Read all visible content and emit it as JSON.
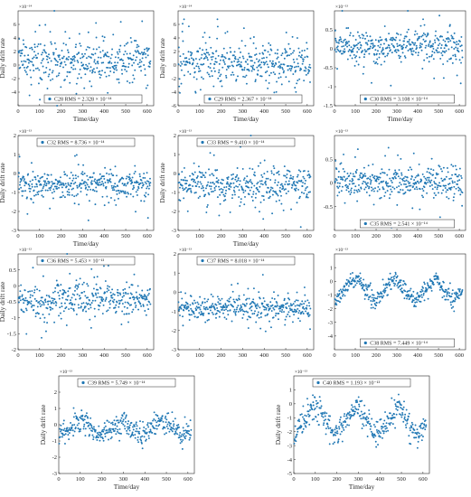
{
  "figure": {
    "marker_color": "#1f77b4",
    "background": "#ffffff",
    "axis_color": "#262626"
  },
  "chart_data": [
    {
      "id": "C28",
      "type": "scatter",
      "legend": "C28 RMS = 2.328 × 10⁻¹⁴",
      "legend_loc": "bottom",
      "ylabel": "Daily drift rate",
      "xlabel": "Time/day",
      "exponent": "×10⁻¹⁴",
      "xlim": [
        0,
        630
      ],
      "ylim": [
        -6,
        8
      ],
      "xticks": [
        0,
        100,
        200,
        300,
        400,
        500,
        600
      ],
      "yticks": [
        -6,
        -4,
        -2,
        0,
        2,
        4,
        6
      ],
      "yticks_labels": [
        "",
        "-4",
        "-2",
        "0",
        "2",
        "4",
        "6"
      ],
      "pattern": "noise",
      "center": 0.6,
      "spread": 1.6,
      "trend": 0,
      "amp": 0,
      "seed": 28
    },
    {
      "id": "C29",
      "type": "scatter",
      "legend": "C29 RMS = 2.367 × 10⁻¹⁴",
      "legend_loc": "bottom",
      "ylabel": "Daily drift rate",
      "xlabel": "Time/day",
      "exponent": "×10⁻¹⁴",
      "xlim": [
        0,
        630
      ],
      "ylim": [
        -6,
        8
      ],
      "xticks": [
        0,
        100,
        200,
        300,
        400,
        500,
        600
      ],
      "yticks": [
        -6,
        -4,
        -2,
        0,
        2,
        4,
        6
      ],
      "yticks_labels": [
        "-6",
        "-4",
        "-2",
        "0",
        "2",
        "4",
        "6"
      ],
      "pattern": "noise",
      "center": 0.5,
      "spread": 1.6,
      "trend": -0.3,
      "amp": 0,
      "seed": 29
    },
    {
      "id": "C30",
      "type": "scatter",
      "legend": "C30 RMS = 3.108 × 10⁻¹⁴",
      "legend_loc": "bottom",
      "ylabel": "",
      "xlabel": "Time/day",
      "exponent": "×10⁻¹³",
      "xlim": [
        0,
        630
      ],
      "ylim": [
        -1.5,
        1
      ],
      "xticks": [
        0,
        100,
        200,
        300,
        400,
        500,
        600
      ],
      "yticks": [
        -1.5,
        -1,
        -0.5,
        0,
        0.5
      ],
      "yticks_labels": [
        "-1.5",
        "-1",
        "-0.5",
        "0",
        "0.5"
      ],
      "pattern": "noise",
      "center": 0.1,
      "spread": 0.22,
      "trend": -0.05,
      "amp": 0,
      "seed": 30
    },
    {
      "id": "C32",
      "type": "scatter",
      "legend": "C32 RMS = 8.736 × 10⁻¹⁴",
      "legend_loc": "top",
      "ylabel": "Daily drift rate",
      "xlabel": "Time/day",
      "exponent": "×10⁻¹³",
      "xlim": [
        0,
        630
      ],
      "ylim": [
        -3,
        2
      ],
      "xticks": [
        0,
        100,
        200,
        300,
        400,
        500,
        600
      ],
      "yticks": [
        -3,
        -2,
        -1,
        0,
        1,
        2
      ],
      "yticks_labels": [
        "-3",
        "-2",
        "-1",
        "0",
        "1",
        "2"
      ],
      "pattern": "noise",
      "center": -0.6,
      "spread": 0.35,
      "trend": 0,
      "amp": 0,
      "seed": 32
    },
    {
      "id": "C33",
      "type": "scatter",
      "legend": "C33 RMS = 9.410 × 10⁻¹⁴",
      "legend_loc": "top",
      "ylabel": "Daily drift rate",
      "xlabel": "Time/day",
      "exponent": "×10⁻¹³",
      "xlim": [
        0,
        630
      ],
      "ylim": [
        -3,
        2
      ],
      "xticks": [
        0,
        100,
        200,
        300,
        400,
        500,
        600
      ],
      "yticks": [
        -3,
        -2,
        -1,
        0,
        1,
        2
      ],
      "yticks_labels": [
        "-3",
        "-2",
        "-1",
        "0",
        "1",
        "2"
      ],
      "pattern": "noise",
      "center": -0.7,
      "spread": 0.45,
      "trend": 0.1,
      "amp": 0,
      "seed": 33
    },
    {
      "id": "C35",
      "type": "scatter",
      "legend": "C35 RMS = 2.541 × 10⁻¹⁴",
      "legend_loc": "bottom",
      "ylabel": "",
      "xlabel": "",
      "exponent": "×10⁻¹³",
      "xlim": [
        0,
        630
      ],
      "ylim": [
        -1,
        1
      ],
      "xticks": [
        0,
        100,
        200,
        300,
        400,
        500,
        600
      ],
      "yticks": [
        -0.5,
        0,
        0.5
      ],
      "yticks_labels": [
        "-0.5",
        "0",
        "0.5"
      ],
      "pattern": "noise",
      "center": 0.05,
      "spread": 0.17,
      "trend": -0.05,
      "amp": 0,
      "seed": 35
    },
    {
      "id": "C36",
      "type": "scatter",
      "legend": "C36 RMS = 5.453 × 10⁻¹³",
      "legend_loc": "top",
      "ylabel": "Daily drift rate",
      "xlabel": "",
      "exponent": "×10⁻¹²",
      "xlim": [
        0,
        630
      ],
      "ylim": [
        -2,
        1
      ],
      "xticks": [
        0,
        100,
        200,
        300,
        400,
        500,
        600
      ],
      "yticks": [
        -2,
        -1.5,
        -1,
        -0.5,
        0,
        0.5
      ],
      "yticks_labels": [
        "-2",
        "-1.5",
        "-1",
        "-0.5",
        "0",
        "0.5"
      ],
      "pattern": "noise",
      "center": -0.45,
      "spread": 0.25,
      "trend": 0.05,
      "amp": 0,
      "seed": 36
    },
    {
      "id": "C37",
      "type": "scatter",
      "legend": "C37 RMS = 8.018 × 10⁻¹⁴",
      "legend_loc": "top",
      "ylabel": "",
      "xlabel": "",
      "exponent": "×10⁻¹³",
      "xlim": [
        0,
        630
      ],
      "ylim": [
        -3,
        2
      ],
      "xticks": [
        0,
        100,
        200,
        300,
        400,
        500,
        600
      ],
      "yticks": [
        -3,
        -2,
        -1,
        0,
        1,
        2
      ],
      "yticks_labels": [
        "-3",
        "-2",
        "-1",
        "0",
        "1",
        "2"
      ],
      "pattern": "noise",
      "center": -0.8,
      "spread": 0.3,
      "trend": 0,
      "amp": 0,
      "seed": 37
    },
    {
      "id": "C38",
      "type": "scatter",
      "legend": "C38 RMS = 7.449 × 10⁻¹⁴",
      "legend_loc": "bottom",
      "ylabel": "",
      "xlabel": "",
      "exponent": "×10⁻¹³",
      "xlim": [
        0,
        630
      ],
      "ylim": [
        -5,
        2
      ],
      "xticks": [
        0,
        100,
        200,
        300,
        400,
        500,
        600
      ],
      "yticks": [
        -4,
        -3,
        -2,
        -1,
        0,
        1
      ],
      "yticks_labels": [
        "-4",
        "-3",
        "-2",
        "-1",
        "0",
        "1"
      ],
      "pattern": "wave",
      "center": -0.6,
      "spread": 0.3,
      "trend": 0,
      "amp": 0.8,
      "seed": 38
    },
    {
      "id": "C39",
      "type": "scatter",
      "legend": "C39 RMS = 5.749 × 10⁻¹⁴",
      "legend_loc": "top",
      "ylabel": "Daily drift rate",
      "xlabel": "Time/day",
      "exponent": "×10⁻¹³",
      "xlim": [
        0,
        630
      ],
      "ylim": [
        -3,
        3
      ],
      "xticks": [
        0,
        100,
        200,
        300,
        400,
        500,
        600
      ],
      "yticks": [
        -3,
        -2,
        -1,
        0,
        1,
        2
      ],
      "yticks_labels": [
        "-3",
        "-2",
        "-1",
        "0",
        "1",
        "2"
      ],
      "pattern": "wave",
      "center": -0.2,
      "spread": 0.35,
      "trend": 0,
      "amp": 0.5,
      "seed": 39
    },
    {
      "id": "C40",
      "type": "scatter",
      "legend": "C40 RMS = 1.193 × 10⁻¹³",
      "legend_loc": "top",
      "ylabel": "Daily drift rate",
      "xlabel": "Time/day",
      "exponent": "×10⁻¹³",
      "xlim": [
        0,
        630
      ],
      "ylim": [
        -5,
        2
      ],
      "xticks": [
        0,
        100,
        200,
        300,
        400,
        500,
        600
      ],
      "yticks": [
        -5,
        -4,
        -3,
        -2,
        -1,
        0,
        1
      ],
      "yticks_labels": [
        "-5",
        "-4",
        "-3",
        "-2",
        "-1",
        "0",
        "1"
      ],
      "pattern": "wave",
      "center": -1.2,
      "spread": 0.45,
      "trend": 0,
      "amp": 1.1,
      "seed": 40
    }
  ]
}
